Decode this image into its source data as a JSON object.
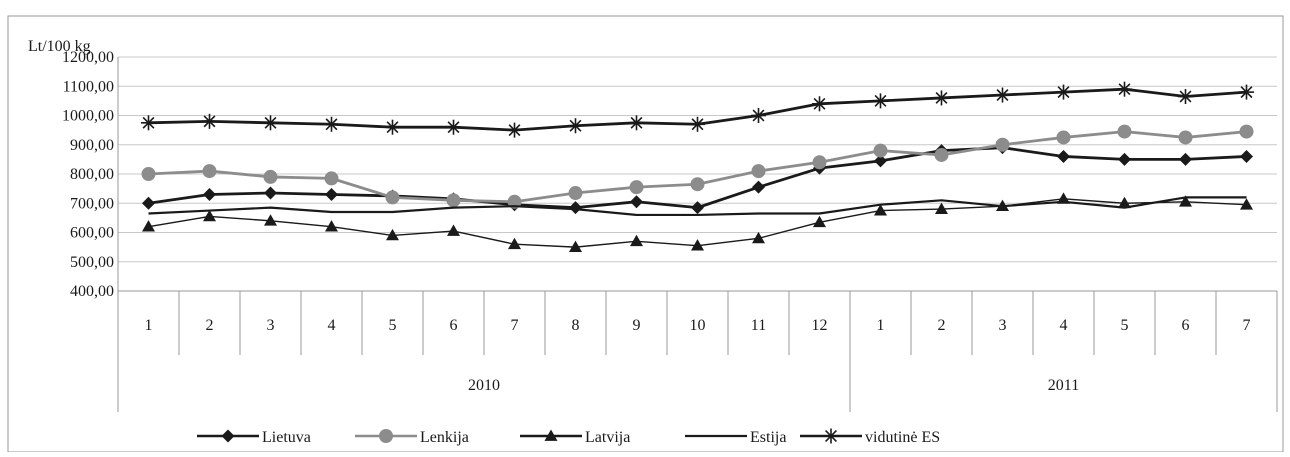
{
  "chart_data": {
    "type": "line",
    "title": "",
    "unit_label": "Lt/100 kg",
    "ylim": [
      400,
      1200
    ],
    "yticks": [
      "400,00",
      "500,00",
      "600,00",
      "700,00",
      "800,00",
      "900,00",
      "1000,00",
      "1100,00",
      "1200,00"
    ],
    "yticks_values": [
      400,
      500,
      600,
      700,
      800,
      900,
      1000,
      1100,
      1200
    ],
    "categories": [
      "1",
      "2",
      "3",
      "4",
      "5",
      "6",
      "7",
      "8",
      "9",
      "10",
      "11",
      "12",
      "1",
      "2",
      "3",
      "4",
      "5",
      "6",
      "7"
    ],
    "years": [
      {
        "label": "2010",
        "count": 12
      },
      {
        "label": "2011",
        "count": 7
      }
    ],
    "grid": "horizontal",
    "legend_position": "bottom",
    "series": [
      {
        "name": "Lietuva",
        "marker": "diamond",
        "color": "#1a1a1a",
        "values": [
          700,
          730,
          735,
          730,
          725,
          715,
          695,
          685,
          705,
          685,
          755,
          820,
          845,
          880,
          890,
          860,
          850,
          850,
          860
        ]
      },
      {
        "name": "Lenkija",
        "marker": "circle",
        "color": "#8c8c8c",
        "values": [
          800,
          810,
          790,
          785,
          720,
          710,
          705,
          735,
          755,
          765,
          810,
          840,
          880,
          865,
          900,
          925,
          945,
          925,
          945
        ]
      },
      {
        "name": "Latvija",
        "marker": "triangle",
        "color": "#1a1a1a",
        "values": [
          620,
          655,
          640,
          620,
          590,
          605,
          560,
          550,
          570,
          555,
          580,
          635,
          675,
          680,
          690,
          715,
          700,
          705,
          695
        ]
      },
      {
        "name": "Estija",
        "marker": "none",
        "color": "#1a1a1a",
        "values": [
          665,
          675,
          685,
          670,
          670,
          685,
          690,
          680,
          660,
          660,
          665,
          665,
          695,
          710,
          690,
          705,
          685,
          720,
          720
        ]
      },
      {
        "name": "vidutinė ES",
        "marker": "star",
        "color": "#1a1a1a",
        "values": [
          975,
          980,
          975,
          970,
          960,
          960,
          950,
          965,
          975,
          970,
          1000,
          1040,
          1050,
          1060,
          1070,
          1080,
          1090,
          1065,
          1080
        ]
      }
    ]
  }
}
